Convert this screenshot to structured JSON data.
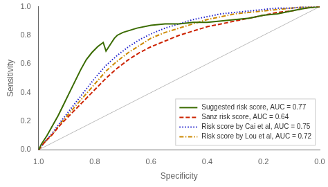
{
  "chart_data": {
    "type": "line",
    "xlabel": "Specificity",
    "ylabel": "Sensitivity",
    "xlim": [
      1,
      0
    ],
    "ylim": [
      0,
      1
    ],
    "xticks": [
      {
        "value": 1,
        "label": "1.0"
      },
      0.8,
      0.6,
      0.4,
      0.2,
      {
        "value": 0,
        "label": "0.0"
      }
    ],
    "yticks": [
      {
        "value": 0,
        "label": "0.0"
      },
      0.2,
      0.4,
      0.6,
      0.8,
      {
        "value": 1,
        "label": "1.0"
      }
    ],
    "grid": false,
    "legend": "lower right",
    "series": [
      {
        "color": "#bbbbbb",
        "line_style": "solid",
        "x": [
          1.0,
          0.0
        ],
        "values": [
          0.0,
          1.0
        ]
      },
      {
        "name": "Suggested risk score, AUC = 0.77",
        "color": "#3a6b00",
        "line_style": "solid",
        "x": [
          1.0,
          0.99,
          0.97,
          0.95,
          0.93,
          0.91,
          0.89,
          0.87,
          0.85,
          0.83,
          0.81,
          0.79,
          0.77,
          0.76,
          0.75,
          0.74,
          0.73,
          0.72,
          0.7,
          0.65,
          0.6,
          0.55,
          0.5,
          0.45,
          0.4,
          0.35,
          0.3,
          0.25,
          0.2,
          0.15,
          0.1,
          0.05,
          0.0
        ],
        "values": [
          0.0,
          0.04,
          0.1,
          0.17,
          0.24,
          0.32,
          0.4,
          0.48,
          0.56,
          0.63,
          0.68,
          0.72,
          0.75,
          0.69,
          0.72,
          0.75,
          0.78,
          0.8,
          0.82,
          0.85,
          0.87,
          0.88,
          0.88,
          0.89,
          0.89,
          0.9,
          0.91,
          0.92,
          0.94,
          0.95,
          0.97,
          0.99,
          1.0
        ]
      },
      {
        "name": "Sanz risk score, AUC = 0.64",
        "color": "#cc2200",
        "line_style": "dashed",
        "x": [
          1.0,
          0.98,
          0.95,
          0.92,
          0.88,
          0.84,
          0.8,
          0.76,
          0.72,
          0.68,
          0.64,
          0.6,
          0.55,
          0.5,
          0.45,
          0.4,
          0.35,
          0.3,
          0.25,
          0.2,
          0.15,
          0.1,
          0.05,
          0.0
        ],
        "values": [
          0.0,
          0.05,
          0.11,
          0.18,
          0.26,
          0.34,
          0.42,
          0.5,
          0.57,
          0.63,
          0.68,
          0.72,
          0.76,
          0.8,
          0.83,
          0.86,
          0.88,
          0.9,
          0.92,
          0.94,
          0.96,
          0.97,
          0.99,
          1.0
        ]
      },
      {
        "name": "Risk score by Cai et al, AUC = 0.75",
        "color": "#2222cc",
        "line_style": "dotted",
        "x": [
          1.0,
          0.98,
          0.95,
          0.92,
          0.88,
          0.84,
          0.8,
          0.76,
          0.72,
          0.68,
          0.64,
          0.6,
          0.55,
          0.5,
          0.45,
          0.4,
          0.35,
          0.3,
          0.25,
          0.2,
          0.15,
          0.1,
          0.05,
          0.0
        ],
        "values": [
          0.0,
          0.05,
          0.12,
          0.2,
          0.3,
          0.4,
          0.5,
          0.59,
          0.66,
          0.72,
          0.77,
          0.81,
          0.85,
          0.88,
          0.91,
          0.93,
          0.95,
          0.96,
          0.97,
          0.98,
          0.99,
          0.99,
          1.0,
          1.0
        ]
      },
      {
        "name": "Risk score by Lou et al, AUC = 0.72",
        "color": "#cc8800",
        "line_style": "dashdot",
        "x": [
          1.0,
          0.98,
          0.95,
          0.92,
          0.88,
          0.84,
          0.8,
          0.76,
          0.72,
          0.68,
          0.64,
          0.6,
          0.55,
          0.5,
          0.45,
          0.4,
          0.35,
          0.3,
          0.25,
          0.2,
          0.15,
          0.1,
          0.05,
          0.0
        ],
        "values": [
          0.0,
          0.05,
          0.11,
          0.19,
          0.28,
          0.37,
          0.46,
          0.55,
          0.62,
          0.68,
          0.73,
          0.78,
          0.82,
          0.85,
          0.88,
          0.91,
          0.93,
          0.95,
          0.96,
          0.97,
          0.98,
          0.99,
          1.0,
          1.0
        ]
      }
    ]
  }
}
